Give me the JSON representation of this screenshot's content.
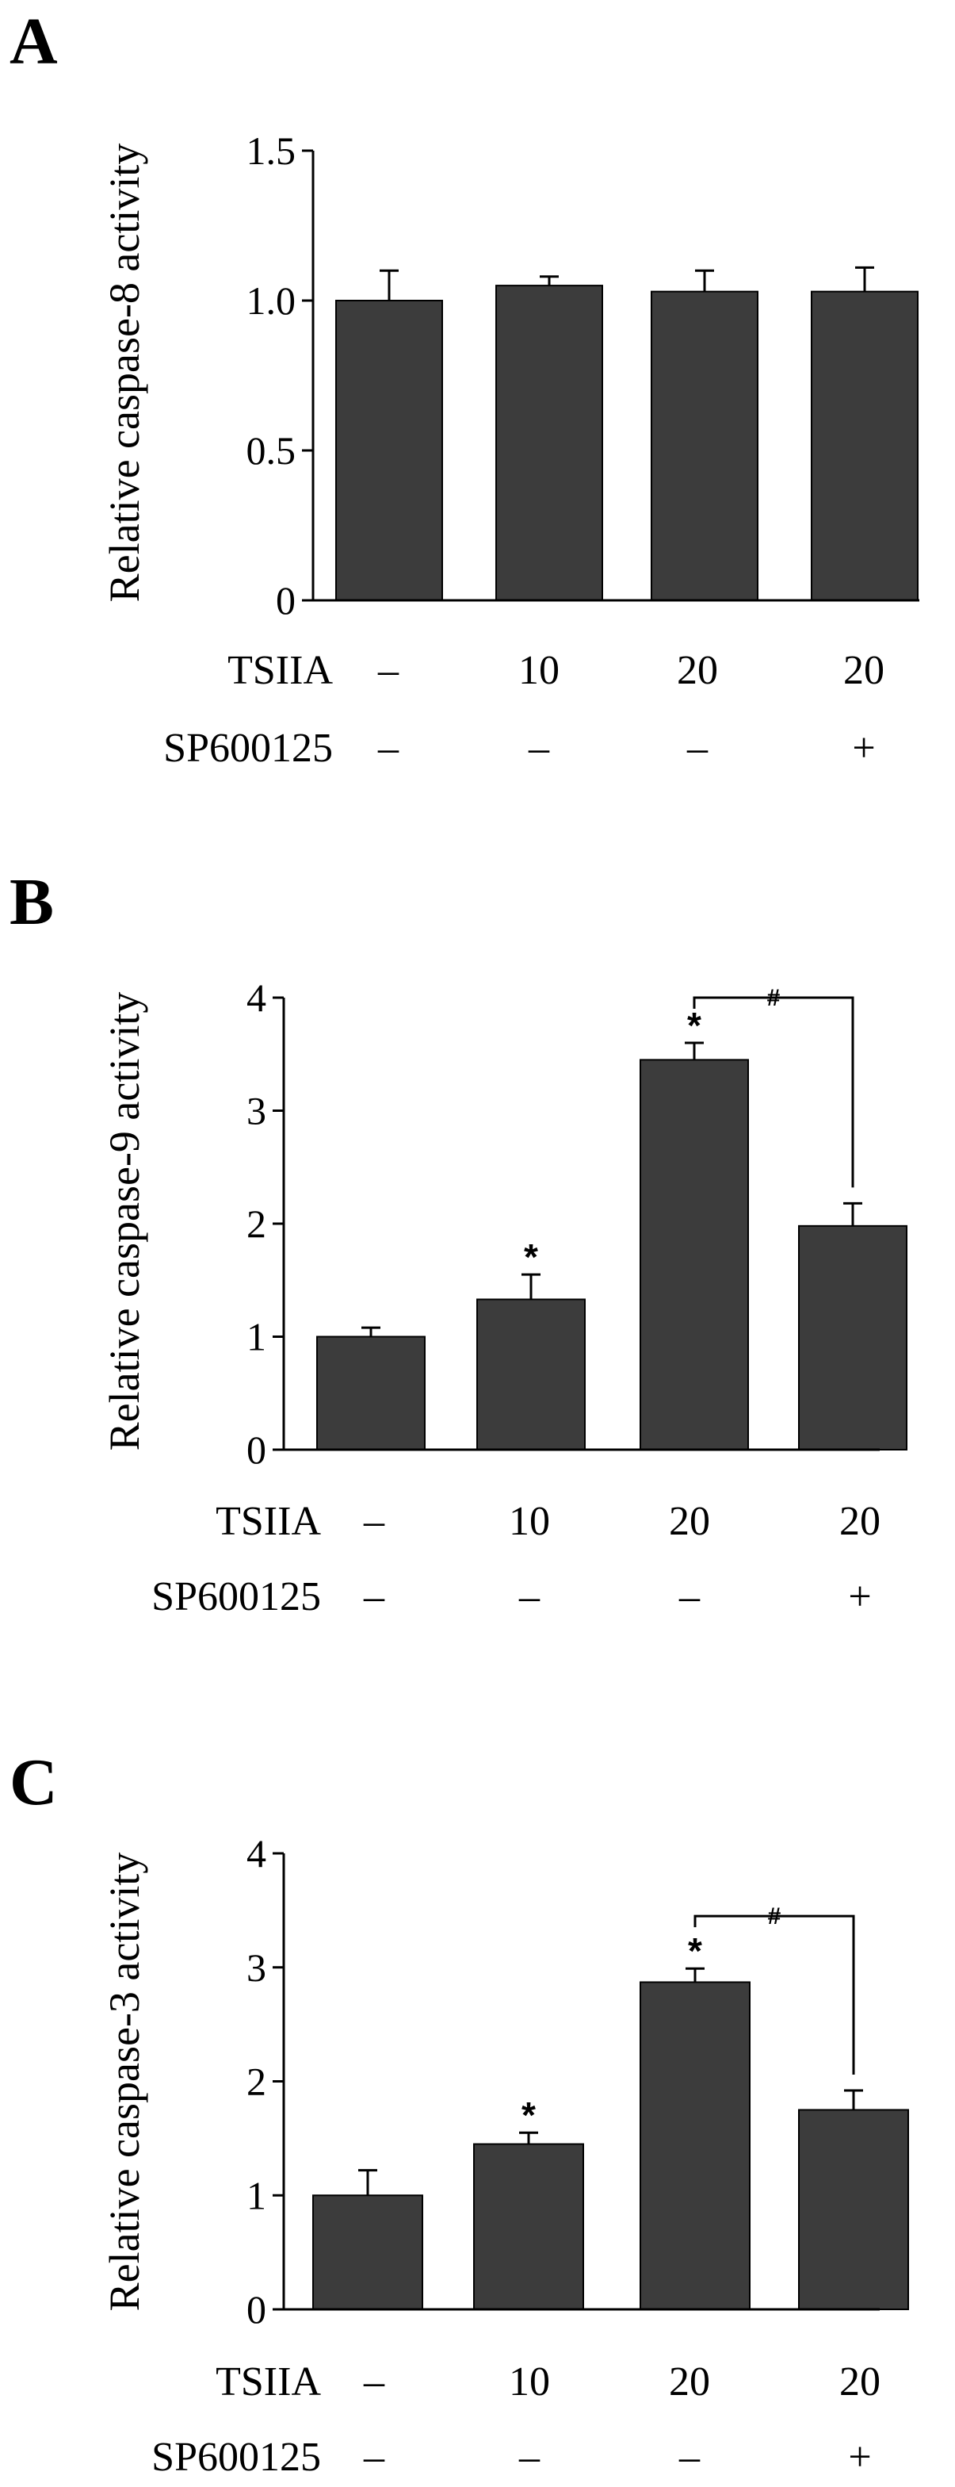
{
  "chart_data": [
    {
      "type": "bar",
      "panel_label": "A",
      "ylabel": "Relative caspase-8 activity",
      "ylim": [
        0,
        1.5
      ],
      "yticks": [
        "0",
        "0.5",
        "1.0",
        "1.5"
      ],
      "ytick_values": [
        0,
        0.5,
        1.0,
        1.5
      ],
      "values": [
        1.0,
        1.05,
        1.03,
        1.03
      ],
      "errors": [
        0.1,
        0.03,
        0.07,
        0.08
      ],
      "colors": {
        "bar": "#3c3c3c",
        "axis": "#000000"
      },
      "condition_rows": [
        {
          "label": "TSIIA",
          "values": [
            "–",
            "10",
            "20",
            "20"
          ]
        },
        {
          "label": "SP600125",
          "values": [
            "–",
            "–",
            "–",
            "+"
          ]
        }
      ],
      "markers": [
        "",
        "",
        "",
        ""
      ],
      "bracket": null
    },
    {
      "type": "bar",
      "panel_label": "B",
      "ylabel": "Relative caspase-9 activity",
      "ylim": [
        0,
        4
      ],
      "yticks": [
        "0",
        "1",
        "2",
        "3",
        "4"
      ],
      "ytick_values": [
        0,
        1,
        2,
        3,
        4
      ],
      "values": [
        1.0,
        1.33,
        3.45,
        1.98
      ],
      "errors": [
        0.08,
        0.22,
        0.15,
        0.2
      ],
      "colors": {
        "bar": "#3c3c3c",
        "axis": "#000000"
      },
      "condition_rows": [
        {
          "label": "TSIIA",
          "values": [
            "–",
            "10",
            "20",
            "20"
          ]
        },
        {
          "label": "SP600125",
          "values": [
            "–",
            "–",
            "–",
            "+"
          ]
        }
      ],
      "markers": [
        "",
        "*",
        "*",
        ""
      ],
      "bracket": {
        "from": 2,
        "to": 3,
        "level": 4.0,
        "label": "#"
      }
    },
    {
      "type": "bar",
      "panel_label": "C",
      "ylabel": "Relative caspase-3 activity",
      "ylim": [
        0,
        4
      ],
      "yticks": [
        "0",
        "1",
        "2",
        "3",
        "4"
      ],
      "ytick_values": [
        0,
        1,
        2,
        3,
        4
      ],
      "values": [
        1.0,
        1.45,
        2.87,
        1.75
      ],
      "errors": [
        0.22,
        0.1,
        0.12,
        0.17
      ],
      "colors": {
        "bar": "#3c3c3c",
        "axis": "#000000"
      },
      "condition_rows": [
        {
          "label": "TSIIA",
          "values": [
            "–",
            "10",
            "20",
            "20"
          ]
        },
        {
          "label": "SP600125",
          "values": [
            "–",
            "–",
            "–",
            "+"
          ]
        }
      ],
      "markers": [
        "",
        "*",
        "*",
        ""
      ],
      "bracket": {
        "from": 2,
        "to": 3,
        "level": 3.45,
        "label": "#"
      }
    }
  ]
}
